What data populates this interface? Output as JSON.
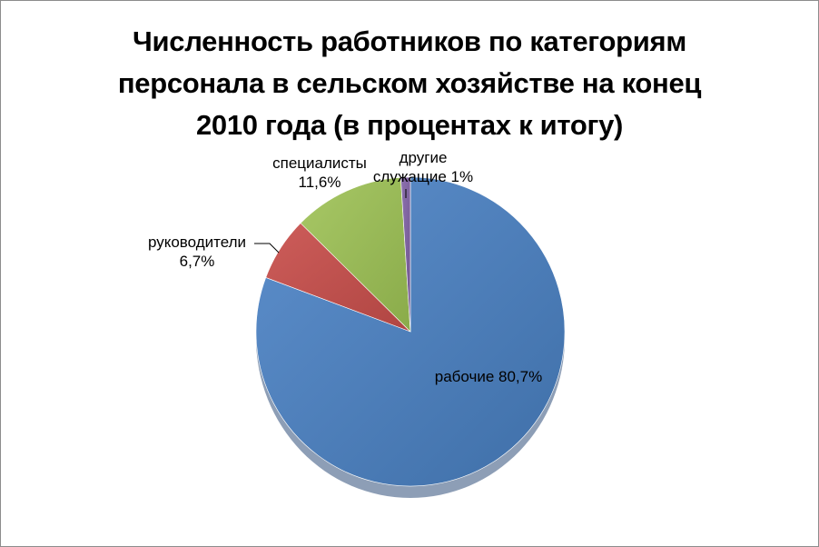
{
  "chart_data": {
    "type": "pie",
    "title_lines": [
      "Численность работников по категориям",
      "персонала в сельском хозяйстве на конец",
      "2010 года (в процентах к итогу)"
    ],
    "slices": [
      {
        "category": "рабочие",
        "value": 80.7,
        "label_lines": [
          "рабочие 80,7%"
        ],
        "color": "#4f81bd"
      },
      {
        "category": "руководители",
        "value": 6.7,
        "label_lines": [
          "руководители",
          "6,7%"
        ],
        "color": "#c0504d"
      },
      {
        "category": "специалисты",
        "value": 11.6,
        "label_lines": [
          "специалисты",
          "11,6%"
        ],
        "color": "#9bbb59"
      },
      {
        "category": "другие служащие",
        "value": 1.0,
        "label_lines": [
          "другие",
          "служащие 1%"
        ],
        "color": "#8064a2"
      }
    ],
    "legend": "none",
    "start_angle_deg": 0,
    "direction": "clockwise"
  }
}
